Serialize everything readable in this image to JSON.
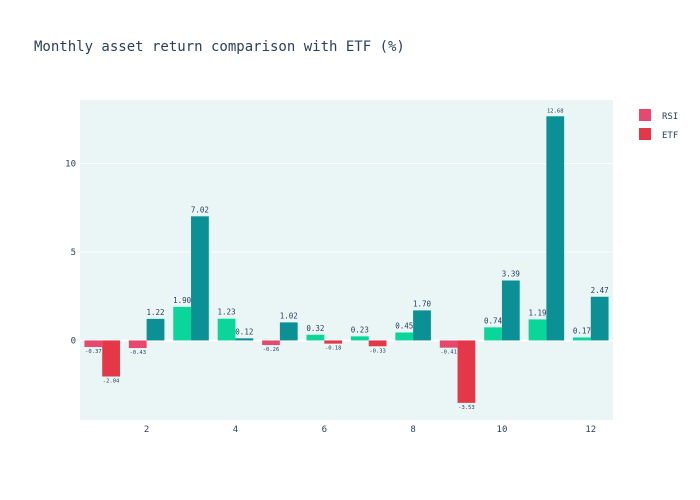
{
  "chart_data": {
    "type": "bar",
    "title": "Monthly asset return comparison with ETF (%)",
    "xlabel": "",
    "ylabel": "",
    "x": [
      1,
      2,
      3,
      4,
      5,
      6,
      7,
      8,
      9,
      10,
      11,
      12
    ],
    "xticks": [
      "2",
      "4",
      "6",
      "8",
      "10",
      "12"
    ],
    "yticks": [
      "0",
      "5",
      "10"
    ],
    "xlim": [
      0.5,
      12.5
    ],
    "ylim": [
      -4.5,
      13.6
    ],
    "grid": true,
    "legend_position": "top-right",
    "colors": {
      "positive_rsi": "#0ad69a",
      "negative_rsi": "#e8476e",
      "positive_etf": "#0b9096",
      "negative_etf": "#e43848",
      "plot_background": "#eaf5f5",
      "grid": "#ffffff",
      "text": "#2a3f5f"
    },
    "series": [
      {
        "name": "RSI",
        "values": [
          -0.37,
          -0.43,
          1.9,
          1.23,
          -0.26,
          0.32,
          0.23,
          0.45,
          -0.41,
          0.74,
          1.19,
          0.17
        ],
        "labels": [
          "-0.37",
          "-0.43",
          "1.90",
          "1.23",
          "-0.26",
          "0.32",
          "0.23",
          "0.45",
          "-0.41",
          "0.74",
          "1.19",
          "0.17"
        ]
      },
      {
        "name": "ETF",
        "values": [
          -2.04,
          1.22,
          7.02,
          0.12,
          1.02,
          -0.18,
          -0.33,
          1.7,
          -3.53,
          3.39,
          12.68,
          2.47
        ],
        "labels": [
          "-2.04",
          "1.22",
          "7.02",
          "0.12",
          "1.02",
          "-0.18",
          "-0.33",
          "1.70",
          "-3.53",
          "3.39",
          "12.68",
          "2.47"
        ]
      }
    ]
  }
}
